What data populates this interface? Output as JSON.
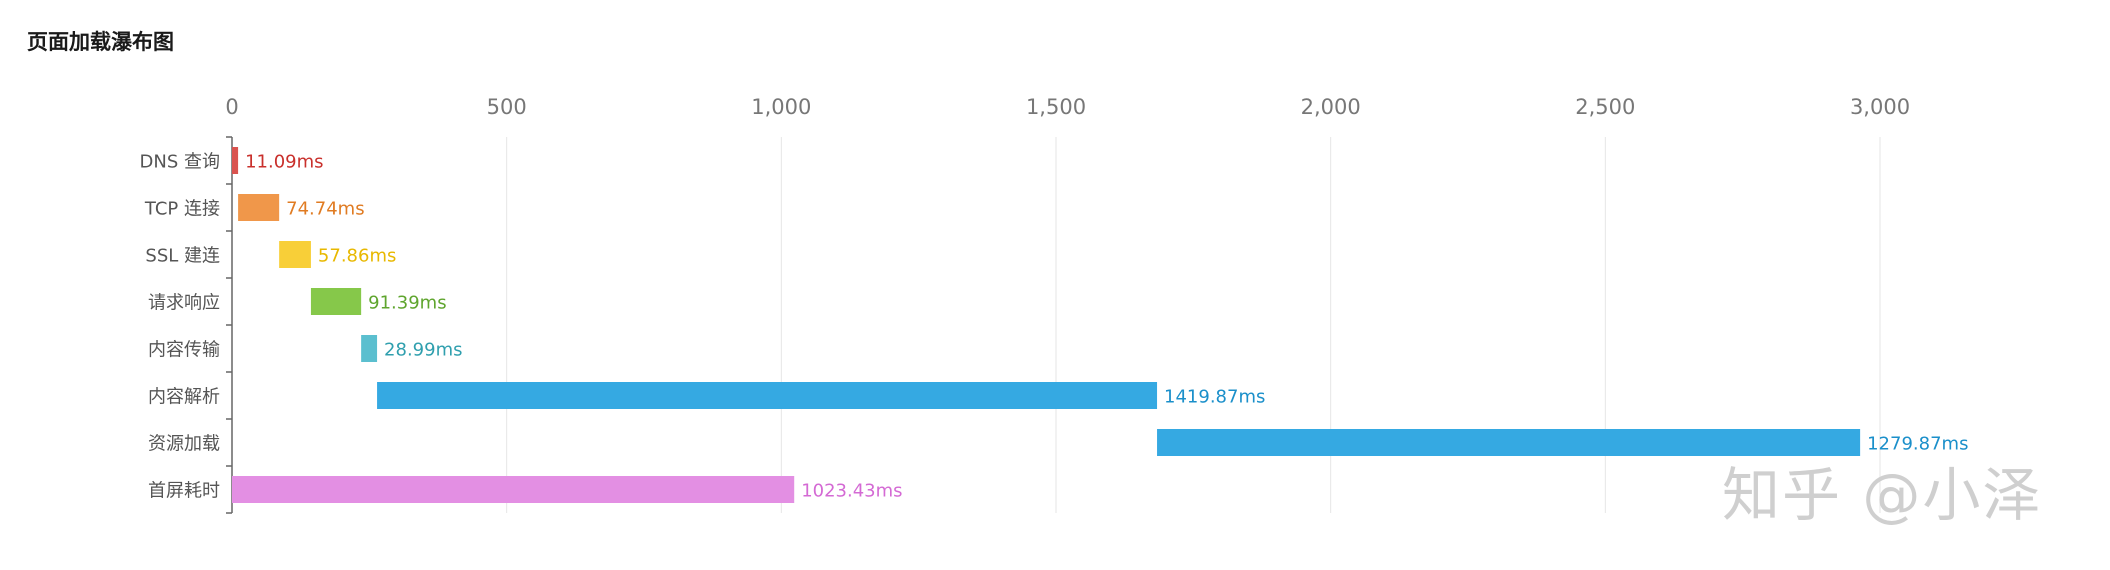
{
  "title": "页面加载瀑布图",
  "watermark": "知乎 @小泽",
  "chart_data": {
    "type": "bar",
    "orientation": "horizontal",
    "stacked": "waterfall",
    "xlim": [
      0,
      3250
    ],
    "x_ticks": [
      0,
      500,
      1000,
      1500,
      2000,
      2500,
      3000
    ],
    "x_tick_labels": [
      "0",
      "500",
      "1,000",
      "1,500",
      "2,000",
      "2,500",
      "3,000"
    ],
    "grid": "vertical",
    "categories": [
      "DNS 查询",
      "TCP 连接",
      "SSL 建连",
      "请求响应",
      "内容传输",
      "内容解析",
      "资源加载",
      "首屏耗时"
    ],
    "start": [
      0,
      11.09,
      85.83,
      143.69,
      235.08,
      264.07,
      1683.94,
      0
    ],
    "values": [
      11.09,
      74.74,
      57.86,
      91.39,
      28.99,
      1419.87,
      1279.87,
      1023.43
    ],
    "data_labels": [
      "11.09ms",
      "74.74ms",
      "57.86ms",
      "91.39ms",
      "28.99ms",
      "1419.87ms",
      "1279.87ms",
      "1023.43ms"
    ],
    "colors": [
      "#d9534f",
      "#f0974a",
      "#f8cf38",
      "#86c84a",
      "#5bbfcf",
      "#35a9e2",
      "#35a9e2",
      "#e38fe3"
    ],
    "label_colors": [
      "#c9302c",
      "#e07b22",
      "#e8b800",
      "#5fa52e",
      "#2f9fae",
      "#1a8fca",
      "#1a8fca",
      "#d46ad4"
    ]
  }
}
